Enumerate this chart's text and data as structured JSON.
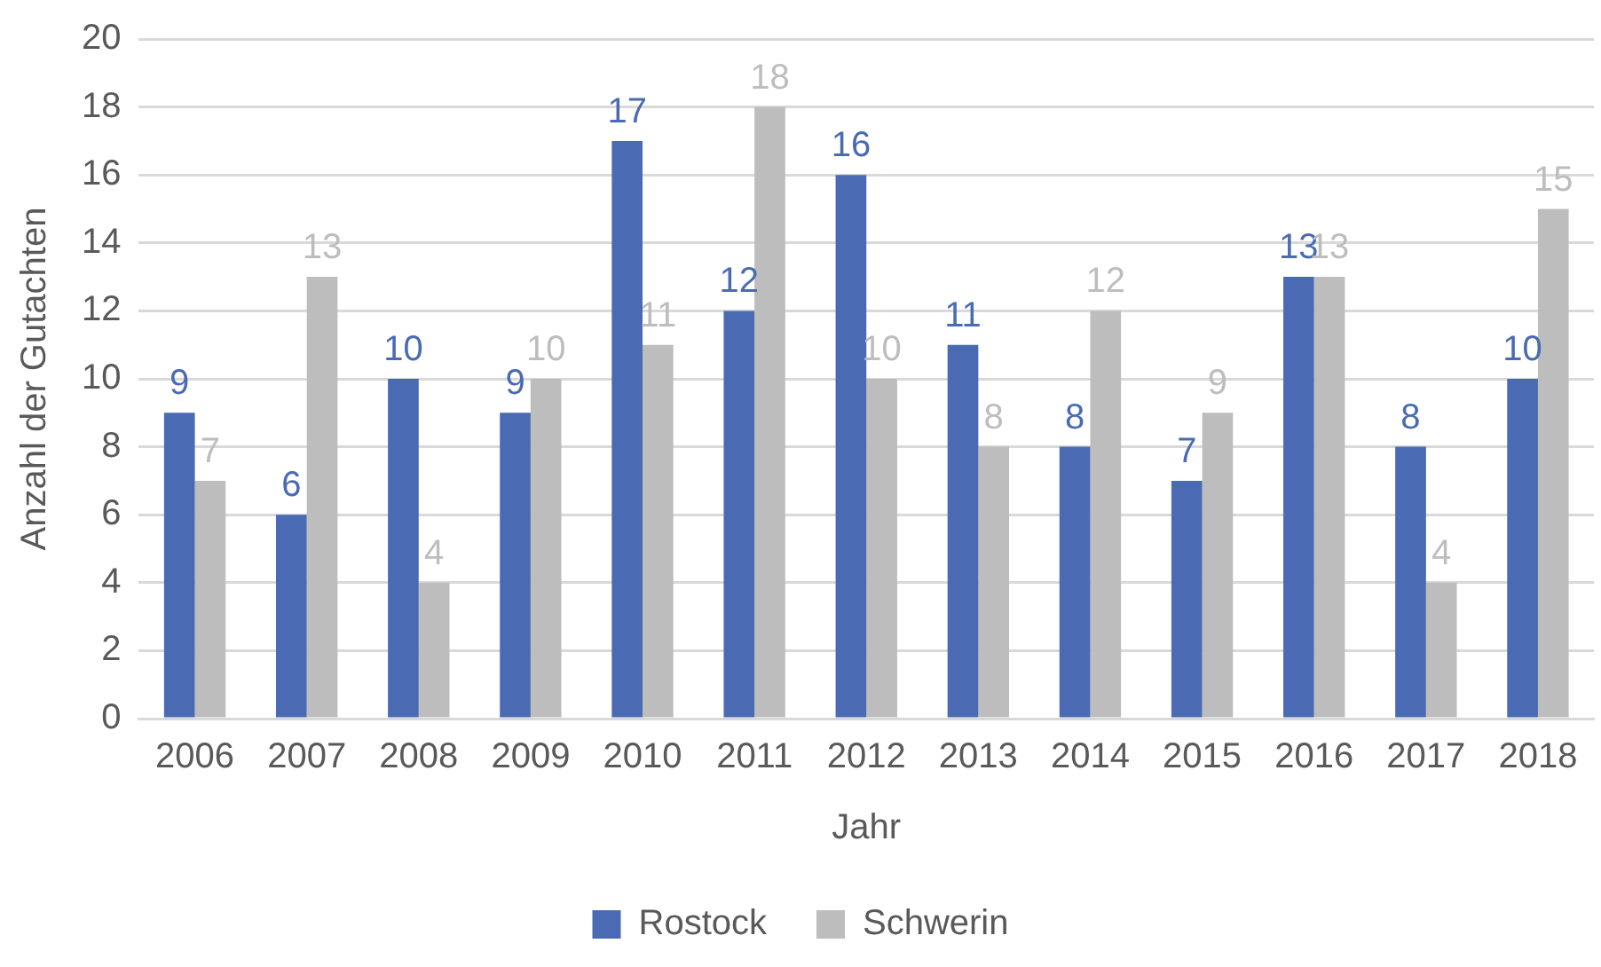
{
  "chart_data": {
    "type": "bar",
    "xlabel": "Jahr",
    "ylabel": "Anzahl der Gutachten",
    "categories": [
      "2006",
      "2007",
      "2008",
      "2009",
      "2010",
      "2011",
      "2012",
      "2013",
      "2014",
      "2015",
      "2016",
      "2017",
      "2018"
    ],
    "series": [
      {
        "name": "Rostock",
        "color": "#4a6bb4",
        "values": [
          9,
          6,
          10,
          9,
          17,
          12,
          16,
          11,
          8,
          7,
          13,
          8,
          10
        ]
      },
      {
        "name": "Schwerin",
        "color": "#bdbdbd",
        "values": [
          7,
          13,
          4,
          10,
          11,
          18,
          10,
          8,
          12,
          9,
          13,
          4,
          15
        ]
      }
    ],
    "ylim": [
      0,
      20
    ],
    "yticks": [
      0,
      2,
      4,
      6,
      8,
      10,
      12,
      14,
      16,
      18,
      20
    ],
    "grid": "y",
    "legend": "bottom",
    "data_labels": true
  }
}
